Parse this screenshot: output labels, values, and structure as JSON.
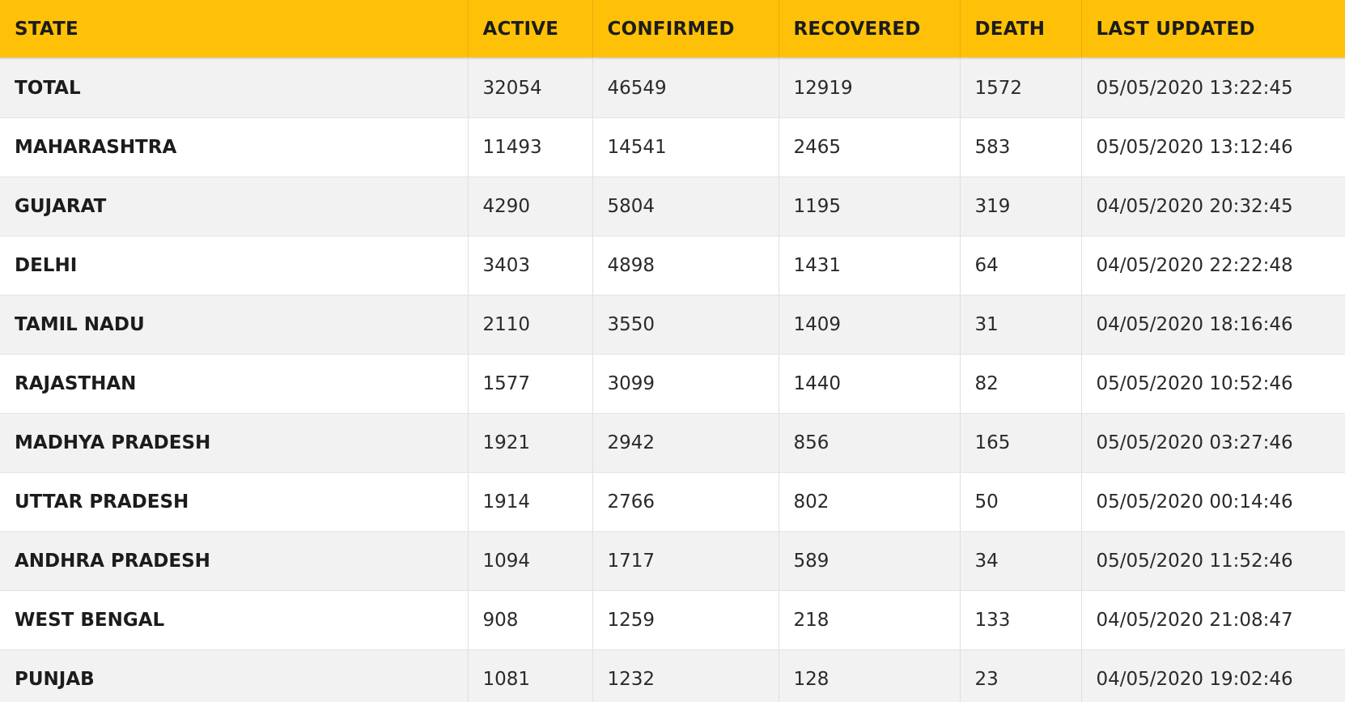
{
  "table": {
    "headers": [
      "STATE",
      "ACTIVE",
      "CONFIRMED",
      "RECOVERED",
      "DEATH",
      "LAST UPDATED"
    ],
    "rows": [
      {
        "state": "TOTAL",
        "active": "32054",
        "confirmed": "46549",
        "recovered": "12919",
        "death": "1572",
        "last_updated": "05/05/2020 13:22:45"
      },
      {
        "state": "MAHARASHTRA",
        "active": "11493",
        "confirmed": "14541",
        "recovered": "2465",
        "death": "583",
        "last_updated": "05/05/2020 13:12:46"
      },
      {
        "state": "GUJARAT",
        "active": "4290",
        "confirmed": "5804",
        "recovered": "1195",
        "death": "319",
        "last_updated": "04/05/2020 20:32:45"
      },
      {
        "state": "DELHI",
        "active": "3403",
        "confirmed": "4898",
        "recovered": "1431",
        "death": "64",
        "last_updated": "04/05/2020 22:22:48"
      },
      {
        "state": "TAMIL NADU",
        "active": "2110",
        "confirmed": "3550",
        "recovered": "1409",
        "death": "31",
        "last_updated": "04/05/2020 18:16:46"
      },
      {
        "state": "RAJASTHAN",
        "active": "1577",
        "confirmed": "3099",
        "recovered": "1440",
        "death": "82",
        "last_updated": "05/05/2020 10:52:46"
      },
      {
        "state": "MADHYA PRADESH",
        "active": "1921",
        "confirmed": "2942",
        "recovered": "856",
        "death": "165",
        "last_updated": "05/05/2020 03:27:46"
      },
      {
        "state": "UTTAR PRADESH",
        "active": "1914",
        "confirmed": "2766",
        "recovered": "802",
        "death": "50",
        "last_updated": "05/05/2020 00:14:46"
      },
      {
        "state": "ANDHRA PRADESH",
        "active": "1094",
        "confirmed": "1717",
        "recovered": "589",
        "death": "34",
        "last_updated": "05/05/2020 11:52:46"
      },
      {
        "state": "WEST BENGAL",
        "active": "908",
        "confirmed": "1259",
        "recovered": "218",
        "death": "133",
        "last_updated": "04/05/2020 21:08:47"
      },
      {
        "state": "PUNJAB",
        "active": "1081",
        "confirmed": "1232",
        "recovered": "128",
        "death": "23",
        "last_updated": "04/05/2020 19:02:46"
      }
    ]
  },
  "colors": {
    "header_background": "#ffc107",
    "row_stripe": "#f2f2f2",
    "row_plain": "#ffffff"
  }
}
